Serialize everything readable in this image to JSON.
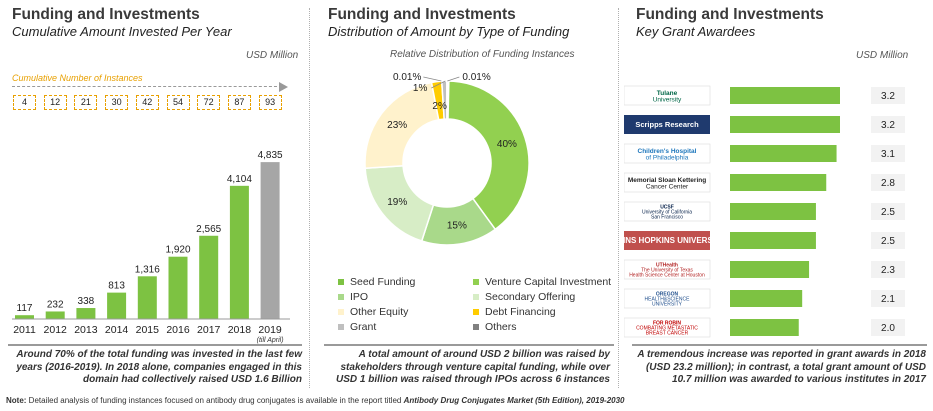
{
  "panels": {
    "invested": {
      "title": "Funding and Investments",
      "subtitle": "Cumulative Amount Invested Per Year",
      "unit": "USD Million",
      "instances_label": "Cumulative Number of Instances",
      "instances": [
        "4",
        "12",
        "21",
        "30",
        "42",
        "54",
        "72",
        "87",
        "93"
      ],
      "last_note": "(till April)",
      "caption": "Around 70% of the total funding was invested in the last few years (2016-2019). In 2018 alone, companies engaged in this domain had collectively raised USD 1.6 Billion"
    },
    "distribution": {
      "title": "Funding and Investments",
      "subtitle": "Distribution of Amount by Type of Funding",
      "chart_subtitle": "Relative Distribution of Funding Instances",
      "caption": "A total amount of around USD 2 billion was raised by stakeholders through venture capital funding, while over USD 1 billion was raised through IPOs across 6 instances"
    },
    "grants": {
      "title": "Funding and Investments",
      "subtitle": "Key Grant Awardees",
      "unit": "USD Million",
      "caption": "A tremendous increase was reported in grant awards in 2018 (USD 23.2 million); in contrast, a total grant amount of USD 10.7 million was awarded to various institutes in 2017"
    }
  },
  "chart_data": [
    {
      "type": "bar",
      "title": "Cumulative Amount Invested Per Year",
      "ylabel": "USD Million",
      "categories": [
        "2011",
        "2012",
        "2013",
        "2014",
        "2015",
        "2016",
        "2017",
        "2018",
        "2019"
      ],
      "values": [
        117,
        232,
        338,
        813,
        1316,
        1920,
        2565,
        4104,
        4835
      ],
      "value_labels": [
        "117",
        "232",
        "338",
        "813",
        "1,316",
        "1,920",
        "2,565",
        "4,104",
        "4,835"
      ],
      "ylim": [
        0,
        4900
      ],
      "colors": [
        "#7dc242",
        "#7dc242",
        "#7dc242",
        "#7dc242",
        "#7dc242",
        "#7dc242",
        "#7dc242",
        "#7dc242",
        "#a6a6a6"
      ]
    },
    {
      "type": "pie",
      "title": "Relative Distribution of Funding Instances",
      "donut": true,
      "slices": [
        {
          "name": "Venture Capital Investment",
          "value": 40,
          "label": "40%",
          "color": "#92d050"
        },
        {
          "name": "IPO",
          "value": 15,
          "label": "15%",
          "color": "#a9d98a"
        },
        {
          "name": "Secondary Offering",
          "value": 19,
          "label": "19%",
          "color": "#d7edc6"
        },
        {
          "name": "Other Equity",
          "value": 23,
          "label": "23%",
          "color": "#fff2cc"
        },
        {
          "name": "Debt Financing",
          "value": 2,
          "label": "2%",
          "color": "#ffcc00"
        },
        {
          "name": "Grant",
          "value": 1,
          "label": "1%",
          "color": "#bfbfbf"
        },
        {
          "name": "Others",
          "value": 0.01,
          "label": "0.01%",
          "color": "#808080"
        },
        {
          "name": "Seed Funding",
          "value": 0.01,
          "label": "0.01%",
          "color": "#7dc242"
        }
      ],
      "legend": [
        {
          "name": "Seed Funding",
          "color": "#7dc242"
        },
        {
          "name": "Venture Capital Investment",
          "color": "#92d050"
        },
        {
          "name": "IPO",
          "color": "#a9d98a"
        },
        {
          "name": "Secondary Offering",
          "color": "#d7edc6"
        },
        {
          "name": "Other Equity",
          "color": "#fff2cc"
        },
        {
          "name": "Debt Financing",
          "color": "#ffcc00"
        },
        {
          "name": "Grant",
          "color": "#bfbfbf"
        },
        {
          "name": "Others",
          "color": "#808080"
        }
      ]
    },
    {
      "type": "bar",
      "orientation": "horizontal",
      "title": "Key Grant Awardees",
      "xlabel": "USD Million",
      "categories": [
        "Tulane University",
        "Scripps Research",
        "Children's Hospital of Philadelphia",
        "Memorial Sloan Kettering Cancer Center",
        "UCSF",
        "Johns Hopkins University",
        "UTHealth",
        "Oregon Health & Science University",
        "For Robin"
      ],
      "values": [
        3.2,
        3.2,
        3.1,
        2.8,
        2.5,
        2.5,
        2.3,
        2.1,
        2.0
      ],
      "value_labels": [
        "3.2",
        "3.2",
        "3.1",
        "2.8",
        "2.5",
        "2.5",
        "2.3",
        "2.1",
        "2.0"
      ],
      "xlim": [
        0,
        3.2
      ],
      "color": "#7dc242"
    }
  ],
  "logos": [
    {
      "name": "Tulane University",
      "lines": [
        "Tulane",
        "University"
      ],
      "color": "#006747"
    },
    {
      "name": "Scripps Research",
      "lines": [
        "Scripps Research"
      ],
      "color": "#ffffff"
    },
    {
      "name": "Children's Hospital of Philadelphia",
      "lines": [
        "Children's Hospital",
        "of Philadelphia"
      ],
      "color": "#1b75bb"
    },
    {
      "name": "Memorial Sloan Kettering Cancer Center",
      "lines": [
        "Memorial Sloan Kettering",
        "Cancer Center"
      ],
      "color": "#222222"
    },
    {
      "name": "UCSF",
      "lines": [
        "UCSF",
        "University of California",
        "San Francisco"
      ],
      "color": "#052049"
    },
    {
      "name": "Johns Hopkins University",
      "lines": [
        "JOHNS HOPKINS",
        "UNIVERSITY"
      ],
      "color": "#ffffff"
    },
    {
      "name": "UTHealth",
      "lines": [
        "UTHealth",
        "The University of Texas",
        "Health Science Center at Houston"
      ],
      "color": "#b22222"
    },
    {
      "name": "Oregon Health & Science University",
      "lines": [
        "OREGON",
        "HEALTH&SCIENCE",
        "UNIVERSITY"
      ],
      "color": "#1f4e8c"
    },
    {
      "name": "For Robin",
      "lines": [
        "FOR ROBIN",
        "COMBATING METASTATIC",
        "BREAST CANCER"
      ],
      "color": "#c00000"
    }
  ],
  "footnote": {
    "prefix": "Note:",
    "text": " Detailed analysis of funding instances focused on antibody drug conjugates is available in the report titled ",
    "report": "Antibody Drug Conjugates Market (5th Edition), 2019-2030"
  },
  "colors": {
    "accent_green": "#7dc242",
    "accent_orange": "#e8a000",
    "projection_gray": "#a6a6a6"
  }
}
